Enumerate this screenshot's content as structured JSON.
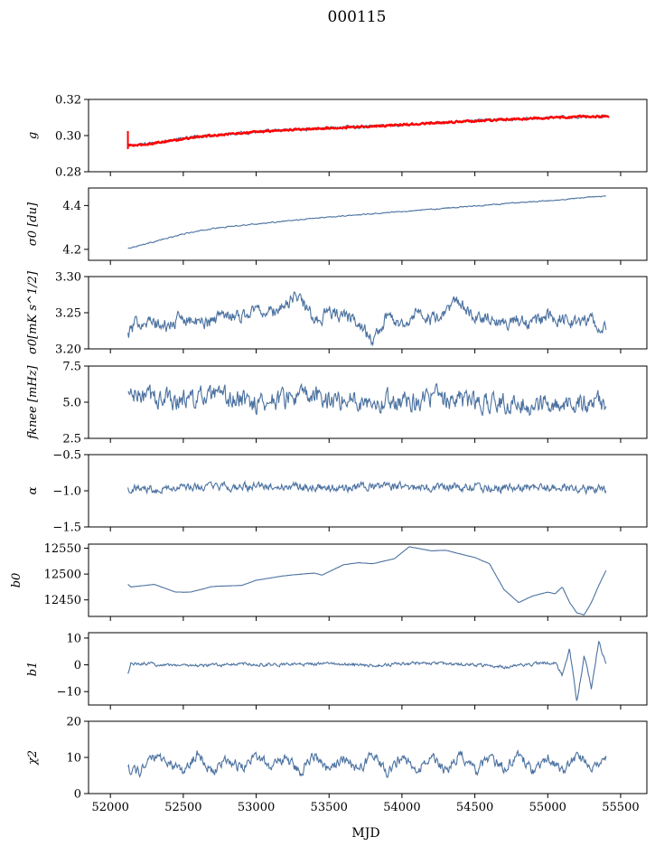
{
  "figure": {
    "title": "000115",
    "xlabel": "MJD"
  },
  "colors": {
    "series": "#4c72a0",
    "fit": "#ff0000",
    "axis": "#000000",
    "background": "#ffffff"
  },
  "chart_data": [
    {
      "type": "line",
      "ylabel": "g",
      "ylim": [
        0.28,
        0.32
      ],
      "yticks": [
        0.28,
        0.3,
        0.32
      ],
      "ytick_labels": [
        "0.28",
        "0.30",
        "0.32"
      ],
      "xlim": [
        51850,
        55680
      ],
      "series": [
        {
          "x": [
            52120,
            52200,
            52400,
            52600,
            52800,
            53000,
            53200,
            53400,
            53600,
            53800,
            54000,
            54200,
            54400,
            54600,
            54800,
            55000,
            55200,
            55400
          ],
          "values": [
            0.2945,
            0.295,
            0.2972,
            0.2995,
            0.301,
            0.302,
            0.303,
            0.3038,
            0.3045,
            0.3052,
            0.306,
            0.3068,
            0.3077,
            0.3085,
            0.3092,
            0.3098,
            0.3103,
            0.3108
          ]
        },
        {
          "x": [
            52120,
            52200,
            52400,
            52600,
            52800,
            53000,
            53200,
            53400,
            53600,
            53800,
            54000,
            54200,
            54400,
            54600,
            54800,
            55000,
            55200,
            55420
          ],
          "values": [
            0.2945,
            0.2947,
            0.297,
            0.2993,
            0.3008,
            0.302,
            0.303,
            0.3038,
            0.3045,
            0.3052,
            0.306,
            0.3068,
            0.3077,
            0.3085,
            0.3093,
            0.3098,
            0.3104,
            0.3107
          ]
        }
      ]
    },
    {
      "type": "line",
      "ylabel": "σ0 [du]",
      "ylim": [
        4.15,
        4.48
      ],
      "yticks": [
        4.2,
        4.4
      ],
      "ytick_labels": [
        "4.2",
        "4.4"
      ],
      "xlim": [
        51850,
        55680
      ],
      "series": [
        {
          "x": [
            52120,
            52300,
            52500,
            52700,
            52900,
            53100,
            53300,
            53500,
            53700,
            53900,
            54100,
            54300,
            54500,
            54700,
            54900,
            55100,
            55300,
            55400
          ],
          "values": [
            4.205,
            4.235,
            4.27,
            4.295,
            4.31,
            4.322,
            4.335,
            4.348,
            4.358,
            4.368,
            4.378,
            4.388,
            4.398,
            4.408,
            4.418,
            4.426,
            4.44,
            4.442
          ]
        }
      ]
    },
    {
      "type": "line",
      "ylabel": "σ0[mK s^1/2]",
      "ylim": [
        3.2,
        3.3
      ],
      "yticks": [
        3.2,
        3.25,
        3.3
      ],
      "ytick_labels": [
        "3.20",
        "3.25",
        "3.30"
      ],
      "xlim": [
        51850,
        55680
      ],
      "series": [
        {
          "x": [
            52120,
            52200,
            52300,
            52400,
            52500,
            52600,
            52700,
            52800,
            52900,
            53000,
            53100,
            53200,
            53280,
            53400,
            53500,
            53600,
            53700,
            53800,
            53900,
            54000,
            54100,
            54200,
            54300,
            54360,
            54500,
            54600,
            54700,
            54800,
            54900,
            55000,
            55100,
            55200,
            55300,
            55400
          ],
          "values": [
            3.22,
            3.24,
            3.235,
            3.23,
            3.245,
            3.235,
            3.24,
            3.25,
            3.245,
            3.255,
            3.25,
            3.26,
            3.275,
            3.24,
            3.25,
            3.245,
            3.24,
            3.21,
            3.245,
            3.235,
            3.25,
            3.24,
            3.245,
            3.27,
            3.24,
            3.245,
            3.235,
            3.24,
            3.235,
            3.245,
            3.24,
            3.235,
            3.24,
            3.225
          ]
        }
      ]
    },
    {
      "type": "line",
      "ylabel": "fknee [mHz]",
      "ylim": [
        2.5,
        7.5
      ],
      "yticks": [
        2.5,
        5.0,
        7.5
      ],
      "ytick_labels": [
        "2.5",
        "5.0",
        "7.5"
      ],
      "xlim": [
        51850,
        55680
      ],
      "series": [
        {
          "x": [
            52120,
            52400,
            52700,
            53000,
            53300,
            53600,
            53900,
            54200,
            54500,
            54800,
            55100,
            55400
          ],
          "values": [
            5.5,
            5.2,
            5.3,
            5.0,
            5.4,
            5.2,
            5.1,
            5.3,
            5.0,
            4.9,
            4.8,
            5.0
          ]
        }
      ]
    },
    {
      "type": "line",
      "ylabel": "α",
      "ylim": [
        -1.5,
        -0.5
      ],
      "yticks": [
        -1.5,
        -1.0,
        -0.5
      ],
      "ytick_labels": [
        "−1.5",
        "−1.0",
        "−0.5"
      ],
      "xlim": [
        51850,
        55680
      ],
      "series": [
        {
          "x": [
            52120,
            52400,
            52700,
            53000,
            53300,
            53600,
            53900,
            54200,
            54500,
            54800,
            55100,
            55400
          ],
          "values": [
            -0.97,
            -0.96,
            -0.95,
            -0.95,
            -0.94,
            -0.96,
            -0.95,
            -0.94,
            -0.95,
            -0.96,
            -0.95,
            -0.98
          ]
        }
      ]
    },
    {
      "type": "line",
      "ylabel": "b0",
      "ylim": [
        12418,
        12558
      ],
      "yticks": [
        12450,
        12500,
        12550
      ],
      "ytick_labels": [
        "12450",
        "12500",
        "12550"
      ],
      "xlim": [
        51850,
        55680
      ],
      "series": [
        {
          "x": [
            52120,
            52140,
            52300,
            52450,
            52550,
            52700,
            52900,
            53000,
            53200,
            53400,
            53450,
            53600,
            53700,
            53800,
            53950,
            54050,
            54200,
            54300,
            54500,
            54600,
            54700,
            54800,
            54900,
            55000,
            55050,
            55100,
            55150,
            55200,
            55250,
            55300,
            55350,
            55400
          ],
          "values": [
            12480,
            12475,
            12480,
            12465,
            12465,
            12476,
            12478,
            12488,
            12497,
            12502,
            12498,
            12518,
            12522,
            12520,
            12530,
            12553,
            12545,
            12546,
            12532,
            12520,
            12470,
            12445,
            12458,
            12465,
            12462,
            12475,
            12445,
            12425,
            12421,
            12445,
            12478,
            12507
          ]
        }
      ]
    },
    {
      "type": "line",
      "ylabel": "b1",
      "ylim": [
        -15,
        12
      ],
      "yticks": [
        -10,
        0,
        10
      ],
      "ytick_labels": [
        "−10",
        "0",
        "10"
      ],
      "xlim": [
        51850,
        55680
      ],
      "series": [
        {
          "x": [
            52120,
            52140,
            52300,
            52600,
            52900,
            53200,
            53500,
            53800,
            54100,
            54400,
            54700,
            54900,
            55050,
            55100,
            55150,
            55200,
            55250,
            55300,
            55350,
            55400
          ],
          "values": [
            -3.5,
            0.5,
            0.2,
            -0.3,
            0.3,
            0.0,
            0.4,
            -0.2,
            0.6,
            0.2,
            -0.8,
            0.3,
            0.8,
            -4.0,
            6.0,
            -14.0,
            3.5,
            -9.0,
            9.0,
            0.2
          ]
        }
      ]
    },
    {
      "type": "line",
      "ylabel": "χ2",
      "ylim": [
        0,
        20
      ],
      "yticks": [
        0,
        10,
        20
      ],
      "ytick_labels": [
        "0",
        "10",
        "20"
      ],
      "xtick_values": [
        52000,
        52500,
        53000,
        53500,
        54000,
        54500,
        55000,
        55500
      ],
      "xtick_labels": [
        "52000",
        "52500",
        "53000",
        "53500",
        "54000",
        "54500",
        "55000",
        "55500"
      ],
      "xlim": [
        51850,
        55680
      ],
      "series": [
        {
          "x": [
            52120,
            52200,
            52300,
            52400,
            52500,
            52600,
            52700,
            52800,
            52900,
            53000,
            53100,
            53200,
            53300,
            53400,
            53500,
            53600,
            53700,
            53800,
            53900,
            54000,
            54100,
            54200,
            54300,
            54400,
            54500,
            54600,
            54700,
            54800,
            54900,
            55000,
            55100,
            55200,
            55300,
            55400
          ],
          "values": [
            7,
            6,
            10,
            9,
            6,
            11,
            6,
            10,
            7,
            11,
            7,
            10,
            6,
            11,
            6,
            10,
            6,
            11,
            6,
            10,
            6,
            11,
            6,
            11,
            6,
            10,
            7,
            11,
            6,
            10,
            6,
            11,
            7,
            10
          ]
        }
      ]
    }
  ]
}
